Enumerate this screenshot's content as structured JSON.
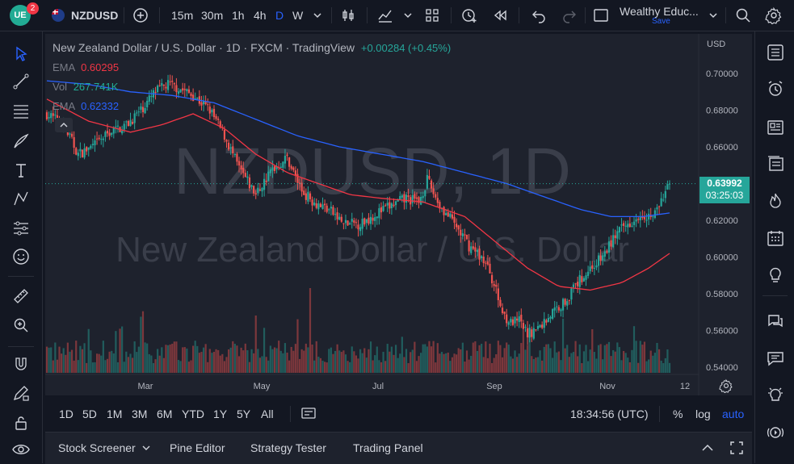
{
  "topbar": {
    "symbol": "NZDUSD",
    "notification_count": "2",
    "intervals": [
      "15m",
      "30m",
      "1h",
      "4h",
      "D",
      "W"
    ],
    "active_interval": "D",
    "layout_name": "Wealthy Educ...",
    "save_label": "Save"
  },
  "legend": {
    "title": "New Zealand Dollar / U.S. Dollar · 1D · FXCM · TradingView",
    "change": "+0.00284 (+0.45%)",
    "ema1_label": "EMA",
    "ema1_value": "0.60295",
    "vol_label": "Vol",
    "vol_value": "267.741K",
    "ema2_label": "EMA",
    "ema2_value": "0.62332"
  },
  "watermark": {
    "ticker": "NZDUSD, 1D",
    "name": "New Zealand Dollar / U.S. Dollar"
  },
  "price_axis": {
    "currency": "USD",
    "current_price": "0.63992",
    "countdown": "03:25:03"
  },
  "bottombar": {
    "ranges": [
      "1D",
      "5D",
      "1M",
      "3M",
      "6M",
      "YTD",
      "1Y",
      "5Y",
      "All"
    ],
    "time": "18:34:56 (UTC)",
    "percent": "%",
    "log": "log",
    "auto": "auto"
  },
  "panels": [
    "Stock Screener",
    "Pine Editor",
    "Strategy Tester",
    "Trading Panel"
  ],
  "chart_data": {
    "type": "candlestick",
    "y_ticks": [
      "0.70000",
      "0.68000",
      "0.66000",
      "0.64000",
      "0.62000",
      "0.60000",
      "0.58000",
      "0.56000",
      "0.54000"
    ],
    "x_ticks": [
      "Mar",
      "May",
      "Jul",
      "Sep",
      "Nov",
      "12"
    ],
    "ylim": [
      0.535,
      0.71
    ],
    "close_anchors": [
      [
        0,
        0.678
      ],
      [
        8,
        0.672
      ],
      [
        15,
        0.656
      ],
      [
        22,
        0.66
      ],
      [
        30,
        0.668
      ],
      [
        38,
        0.672
      ],
      [
        45,
        0.68
      ],
      [
        52,
        0.69
      ],
      [
        58,
        0.694
      ],
      [
        63,
        0.692
      ],
      [
        70,
        0.688
      ],
      [
        78,
        0.68
      ],
      [
        85,
        0.666
      ],
      [
        92,
        0.648
      ],
      [
        100,
        0.634
      ],
      [
        108,
        0.648
      ],
      [
        115,
        0.654
      ],
      [
        122,
        0.636
      ],
      [
        128,
        0.63
      ],
      [
        135,
        0.626
      ],
      [
        142,
        0.618
      ],
      [
        150,
        0.618
      ],
      [
        158,
        0.624
      ],
      [
        165,
        0.628
      ],
      [
        172,
        0.632
      ],
      [
        178,
        0.63
      ],
      [
        182,
        0.642
      ],
      [
        188,
        0.628
      ],
      [
        195,
        0.618
      ],
      [
        202,
        0.606
      ],
      [
        208,
        0.6
      ],
      [
        212,
        0.592
      ],
      [
        218,
        0.57
      ],
      [
        222,
        0.564
      ],
      [
        226,
        0.565
      ],
      [
        230,
        0.558
      ],
      [
        236,
        0.562
      ],
      [
        242,
        0.57
      ],
      [
        248,
        0.576
      ],
      [
        254,
        0.586
      ],
      [
        260,
        0.594
      ],
      [
        266,
        0.6
      ],
      [
        272,
        0.612
      ],
      [
        278,
        0.618
      ],
      [
        284,
        0.624
      ],
      [
        290,
        0.622
      ],
      [
        294,
        0.63
      ],
      [
        298,
        0.64
      ]
    ],
    "ema_slow_anchors": [
      [
        0,
        0.696
      ],
      [
        20,
        0.694
      ],
      [
        40,
        0.69
      ],
      [
        60,
        0.688
      ],
      [
        80,
        0.684
      ],
      [
        100,
        0.675
      ],
      [
        120,
        0.666
      ],
      [
        140,
        0.66
      ],
      [
        160,
        0.656
      ],
      [
        180,
        0.652
      ],
      [
        200,
        0.646
      ],
      [
        220,
        0.64
      ],
      [
        240,
        0.632
      ],
      [
        255,
        0.626
      ],
      [
        270,
        0.622
      ],
      [
        285,
        0.622
      ],
      [
        298,
        0.624
      ]
    ],
    "ema_fast_anchors": [
      [
        0,
        0.686
      ],
      [
        20,
        0.674
      ],
      [
        40,
        0.668
      ],
      [
        55,
        0.672
      ],
      [
        70,
        0.678
      ],
      [
        85,
        0.67
      ],
      [
        100,
        0.656
      ],
      [
        115,
        0.646
      ],
      [
        130,
        0.64
      ],
      [
        145,
        0.634
      ],
      [
        160,
        0.632
      ],
      [
        180,
        0.63
      ],
      [
        200,
        0.622
      ],
      [
        215,
        0.608
      ],
      [
        230,
        0.594
      ],
      [
        245,
        0.584
      ],
      [
        260,
        0.582
      ],
      [
        275,
        0.586
      ],
      [
        288,
        0.594
      ],
      [
        298,
        0.602
      ]
    ],
    "colors": {
      "up": "#26a69a",
      "down": "#ef5350",
      "ema_fast": "#f23645",
      "ema_slow": "#2962ff"
    }
  }
}
